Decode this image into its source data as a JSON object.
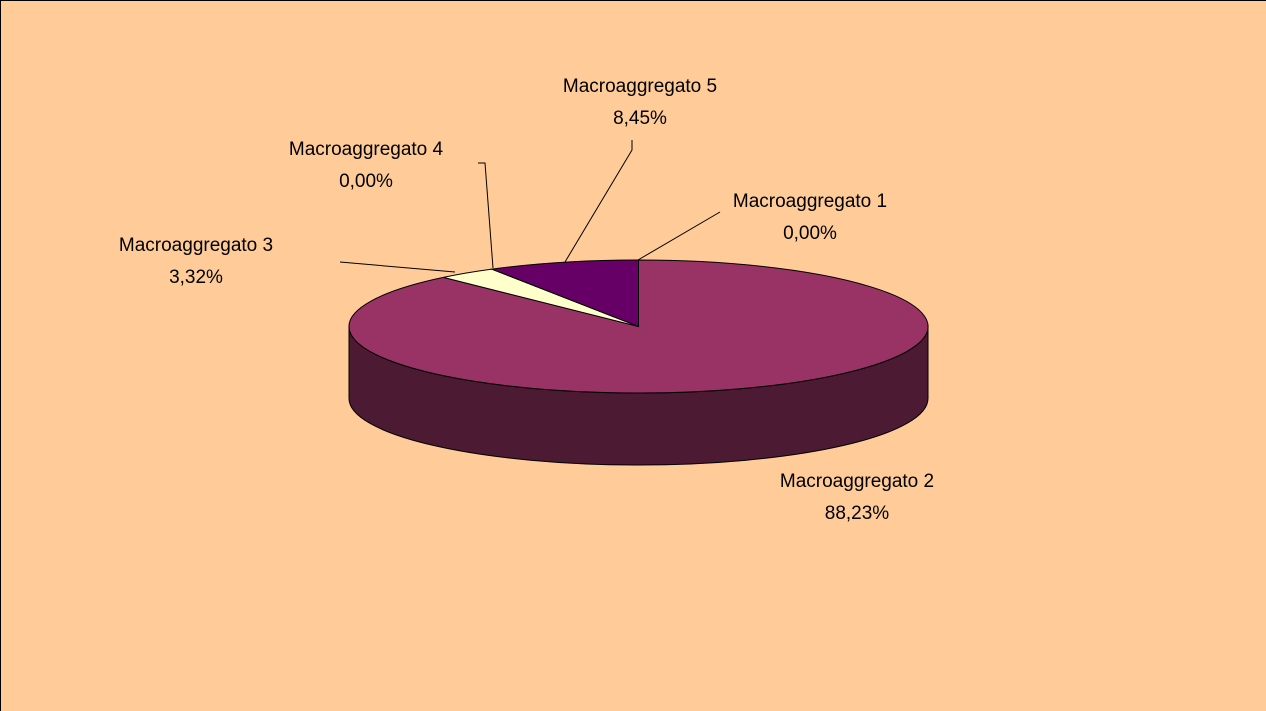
{
  "chart_data": {
    "type": "pie",
    "categories": [
      "Macroaggregato 1",
      "Macroaggregato 2",
      "Macroaggregato 3",
      "Macroaggregato 4",
      "Macroaggregato 5"
    ],
    "values": [
      0,
      88.23,
      3.32,
      0,
      8.45
    ],
    "value_labels": [
      "0,00%",
      "88,23%",
      "3,32%",
      "0,00%",
      "8,45%"
    ],
    "colors": [
      "#9999ff",
      "#993366",
      "#ffffcc",
      "#ccffff",
      "#660066"
    ]
  }
}
